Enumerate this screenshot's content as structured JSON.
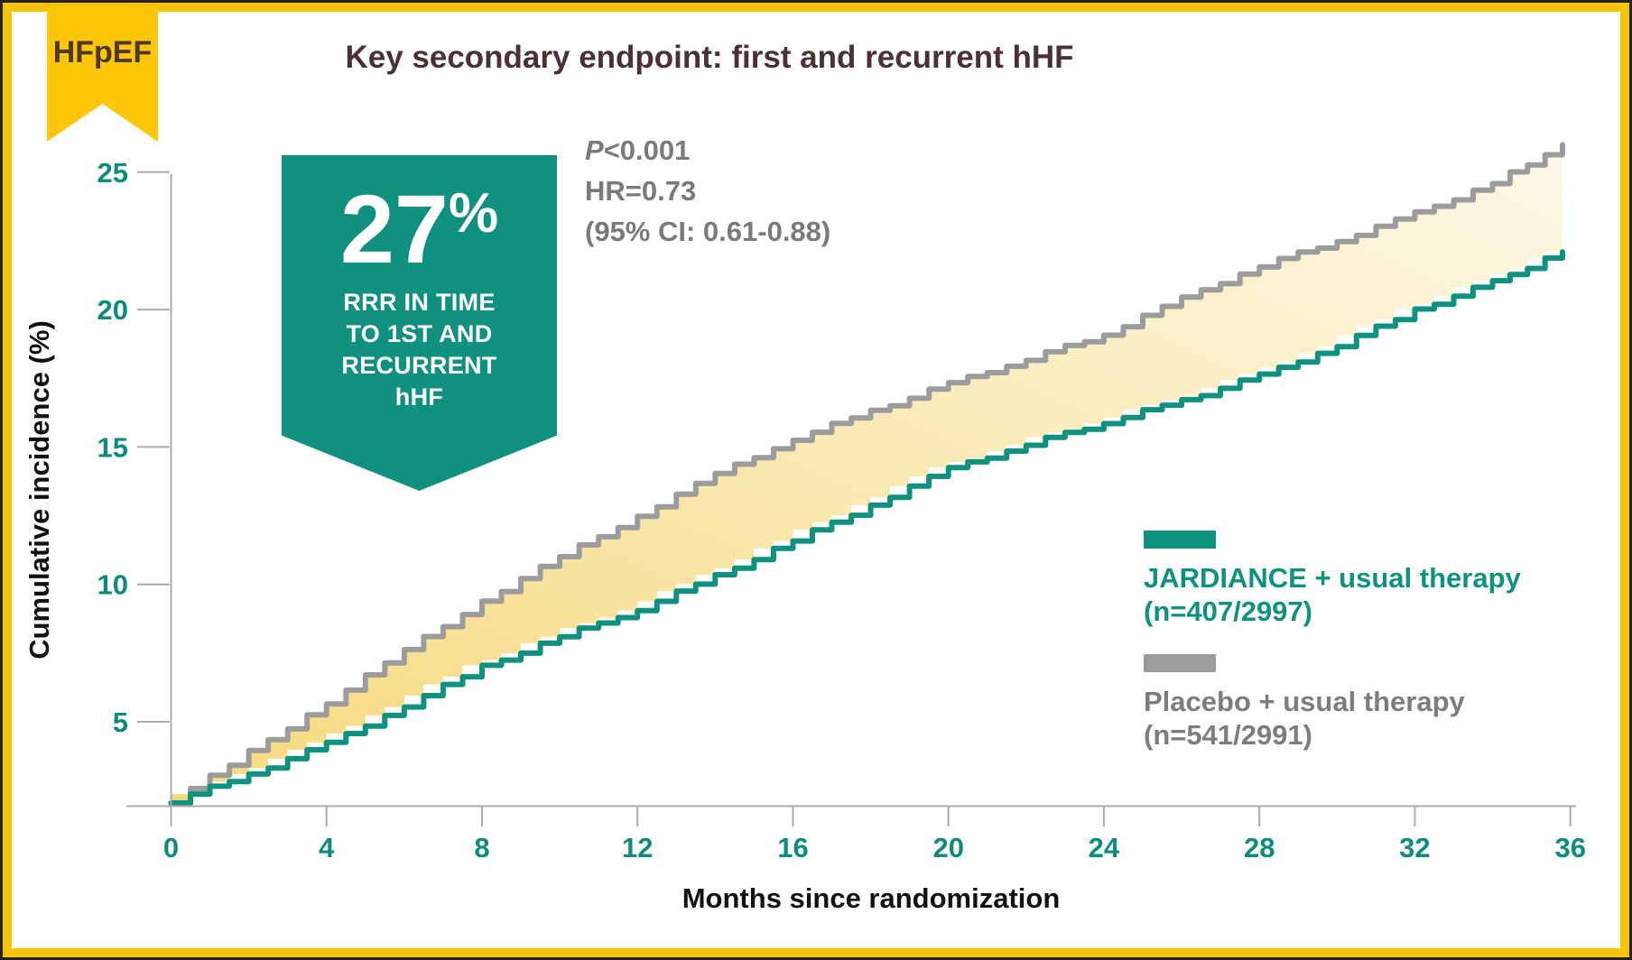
{
  "ribbon": {
    "label": "HFpEF"
  },
  "header": {
    "title": "Key secondary endpoint: first and recurrent hHF"
  },
  "badge": {
    "value": "27",
    "unit": "%",
    "caption_lines": [
      "RRR IN TIME",
      "TO 1ST AND",
      "RECURRENT",
      "hHF"
    ]
  },
  "stats": {
    "p_label": "P",
    "p_value": "<0.001",
    "hr": "HR=0.73",
    "ci": "(95% CI: 0.61-0.88)"
  },
  "legend": {
    "jardiance_label": "JARDIANCE + usual therapy",
    "jardiance_n": "(n=407/2997)",
    "placebo_label": "Placebo + usual therapy",
    "placebo_n": "(n=541/2991)"
  },
  "colors": {
    "teal": "#0f9180",
    "gray_line": "#9c9c9c",
    "axis": "#ababab",
    "frame_yellow": "#f5c402",
    "ribbon_yellow": "#fdc608",
    "title_brown": "#4b3134",
    "stats_gray": "#7a7a7a",
    "fill_from": "#f6da7e",
    "fill_to": "#fdf8e7"
  },
  "chart_data": {
    "type": "area",
    "title": "Key secondary endpoint: first and recurrent hHF",
    "xlabel": "Months since randomization",
    "ylabel": "Cumulative incidence (%)",
    "x_ticks": [
      0,
      4,
      8,
      12,
      16,
      20,
      24,
      28,
      32,
      36
    ],
    "y_ticks": [
      5,
      10,
      15,
      20,
      25
    ],
    "xlim": [
      0,
      36
    ],
    "ylim_displayed": [
      2,
      26
    ],
    "grid": false,
    "legend_position": "right-middle",
    "x": [
      0,
      2,
      4,
      6,
      8,
      10,
      12,
      14,
      16,
      18,
      20,
      22,
      24,
      26,
      28,
      30,
      32,
      34,
      35.8
    ],
    "series": [
      {
        "name": "Placebo + usual therapy",
        "n_shown": "541/2991",
        "color": "#9c9c9c",
        "values": [
          2.1,
          3.9,
          5.7,
          7.6,
          9.4,
          11.0,
          12.5,
          14.0,
          15.3,
          16.3,
          17.3,
          18.2,
          19.1,
          20.4,
          21.6,
          22.5,
          23.5,
          24.6,
          26.0
        ]
      },
      {
        "name": "JARDIANCE + usual therapy",
        "n_shown": "407/2997",
        "color": "#0f9180",
        "values": [
          2.1,
          3.1,
          4.2,
          5.6,
          7.0,
          8.1,
          9.1,
          10.3,
          11.6,
          12.9,
          14.2,
          15.1,
          15.9,
          16.7,
          17.6,
          18.7,
          20.0,
          21.0,
          22.1
        ]
      }
    ],
    "annotations": [
      "27% RRR IN TIME TO 1ST AND RECURRENT hHF",
      "P<0.001",
      "HR=0.73",
      "(95% CI: 0.61-0.88)"
    ]
  }
}
